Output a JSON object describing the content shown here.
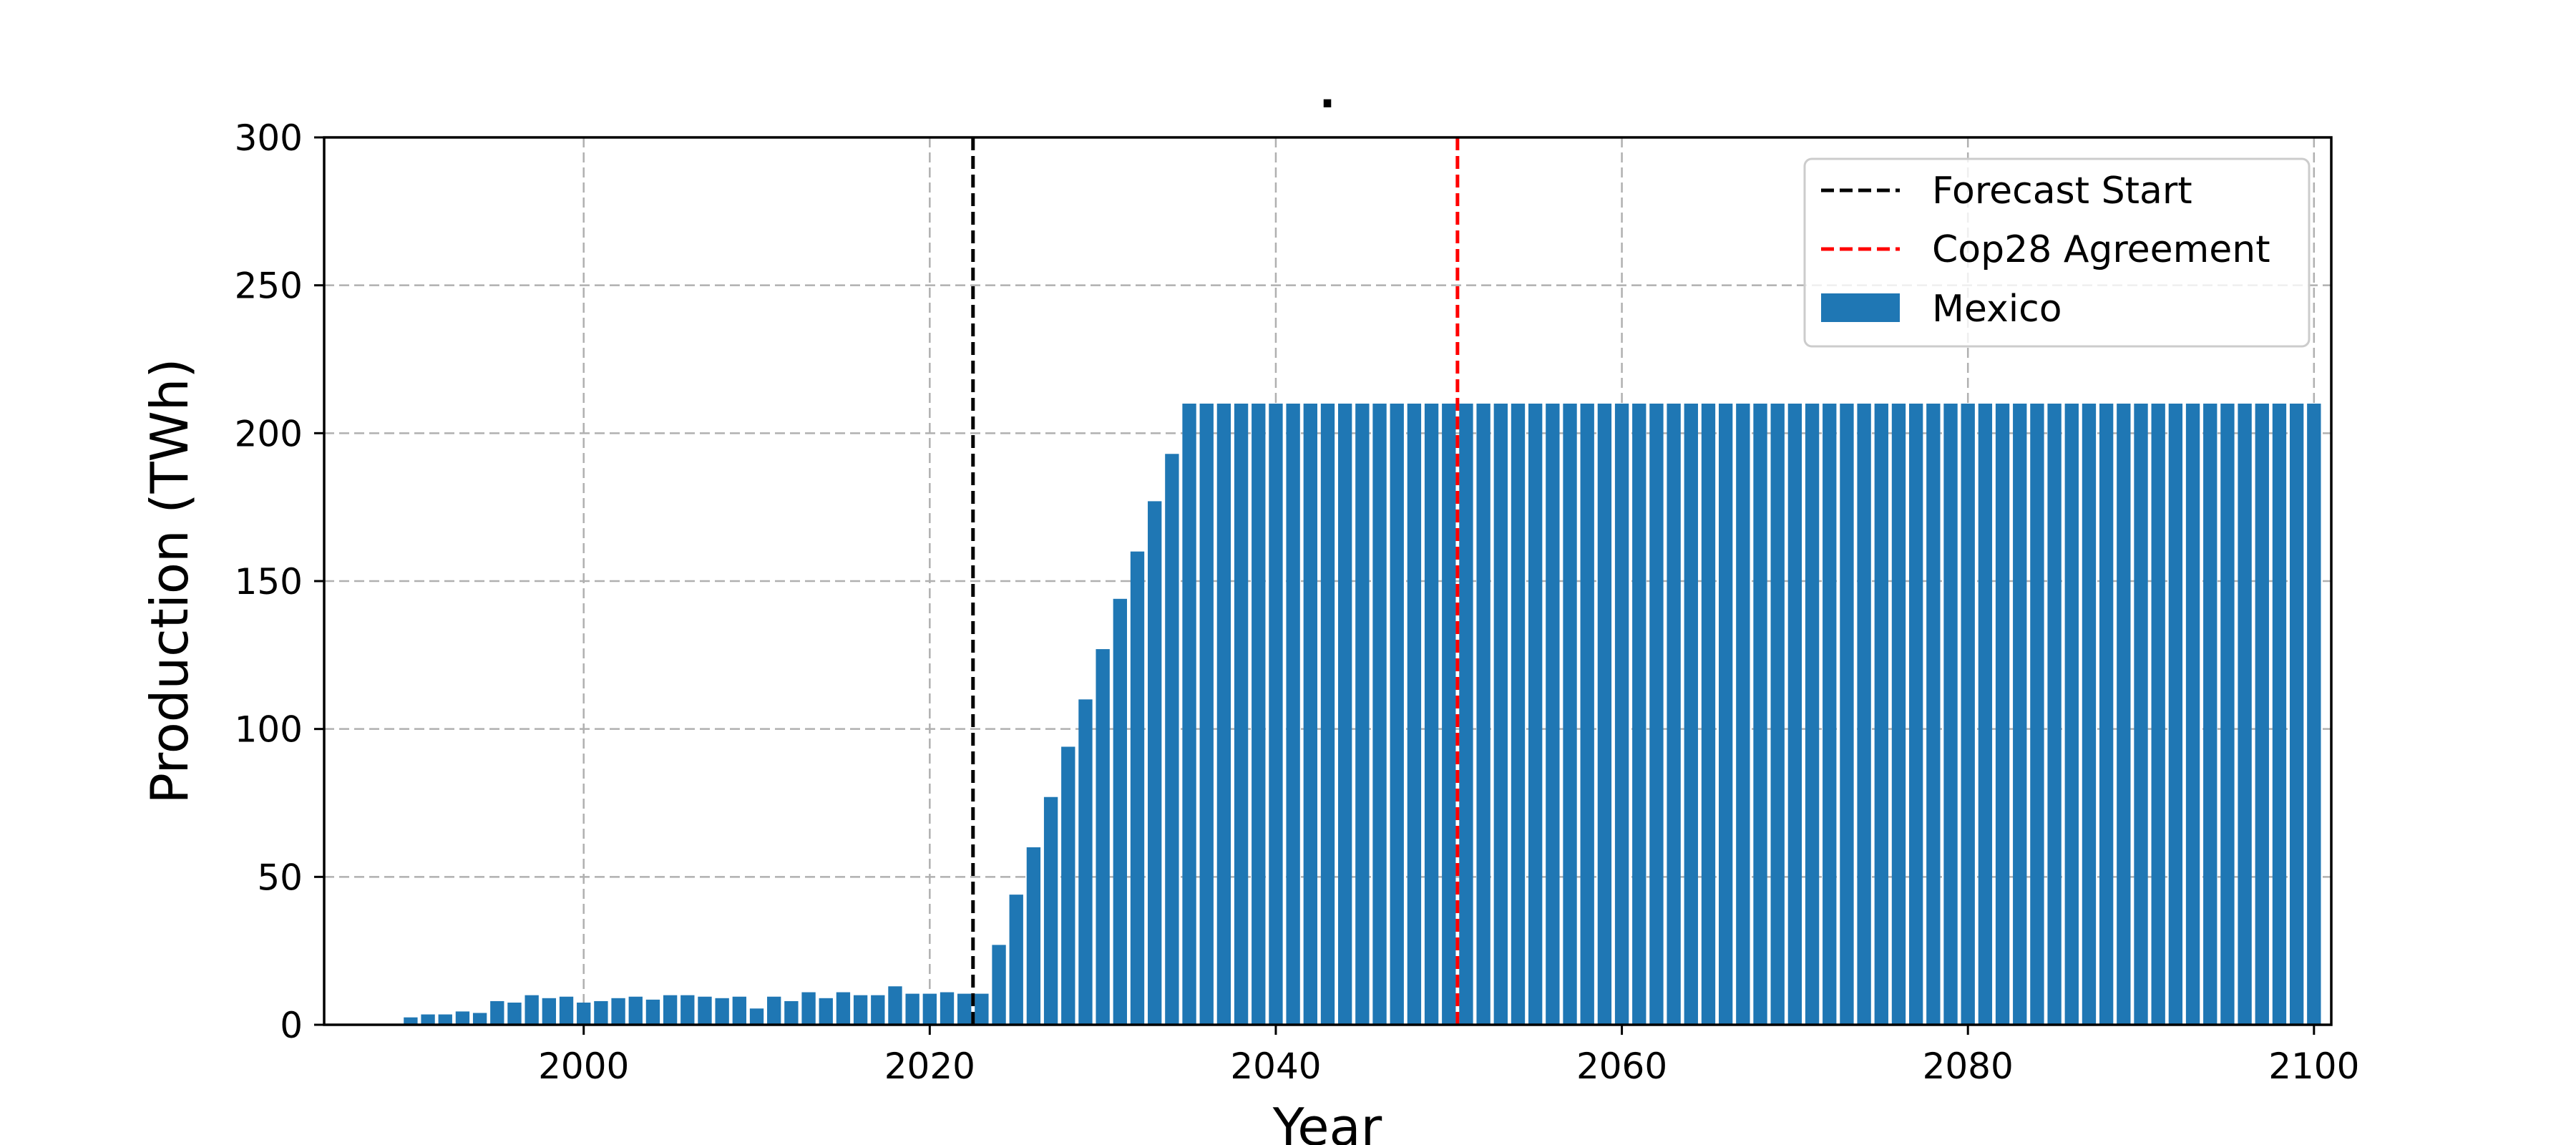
{
  "chart_data": {
    "type": "bar",
    "title": ".",
    "xlabel": "Year",
    "ylabel": "Production (TWh)",
    "xlim": [
      1985,
      2101
    ],
    "ylim": [
      0,
      300
    ],
    "xticks": [
      2000,
      2020,
      2040,
      2060,
      2080,
      2100
    ],
    "yticks": [
      0,
      50,
      100,
      150,
      200,
      250,
      300
    ],
    "grid": true,
    "legend_position": "top-right",
    "bar_color": "#1f77b4",
    "series": [
      {
        "name": "Mexico",
        "x": [
          1990,
          1991,
          1992,
          1993,
          1994,
          1995,
          1996,
          1997,
          1998,
          1999,
          2000,
          2001,
          2002,
          2003,
          2004,
          2005,
          2006,
          2007,
          2008,
          2009,
          2010,
          2011,
          2012,
          2013,
          2014,
          2015,
          2016,
          2017,
          2018,
          2019,
          2020,
          2021,
          2022,
          2023,
          2024,
          2025,
          2026,
          2027,
          2028,
          2029,
          2030,
          2031,
          2032,
          2033,
          2034,
          2035,
          2036,
          2037,
          2038,
          2039,
          2040,
          2041,
          2042,
          2043,
          2044,
          2045,
          2046,
          2047,
          2048,
          2049,
          2050,
          2051,
          2052,
          2053,
          2054,
          2055,
          2056,
          2057,
          2058,
          2059,
          2060,
          2061,
          2062,
          2063,
          2064,
          2065,
          2066,
          2067,
          2068,
          2069,
          2070,
          2071,
          2072,
          2073,
          2074,
          2075,
          2076,
          2077,
          2078,
          2079,
          2080,
          2081,
          2082,
          2083,
          2084,
          2085,
          2086,
          2087,
          2088,
          2089,
          2090,
          2091,
          2092,
          2093,
          2094,
          2095,
          2096,
          2097,
          2098,
          2099,
          2100
        ],
        "values": [
          2.5,
          3.5,
          3.5,
          4.5,
          4,
          8,
          7.5,
          10,
          9,
          9.5,
          7.5,
          8,
          9,
          9.5,
          8.5,
          10,
          10,
          9.5,
          9,
          9.5,
          5.5,
          9.5,
          8,
          11,
          9,
          11,
          10,
          10,
          13,
          10.5,
          10.5,
          11,
          10.5,
          10.5,
          27,
          44,
          60,
          77,
          94,
          110,
          127,
          144,
          160,
          177,
          193,
          210,
          210,
          210,
          210,
          210,
          210,
          210,
          210,
          210,
          210,
          210,
          210,
          210,
          210,
          210,
          210,
          210,
          210,
          210,
          210,
          210,
          210,
          210,
          210,
          210,
          210,
          210,
          210,
          210,
          210,
          210,
          210,
          210,
          210,
          210,
          210,
          210,
          210,
          210,
          210,
          210,
          210,
          210,
          210,
          210,
          210,
          210,
          210,
          210,
          210,
          210,
          210,
          210,
          210,
          210,
          210,
          210,
          210,
          210,
          210,
          210,
          210,
          210,
          210,
          210,
          210
        ]
      }
    ],
    "vlines": [
      {
        "name": "Forecast Start",
        "x": 2022.5,
        "color": "#000000"
      },
      {
        "name": "Cop28 Agreement",
        "x": 2050.5,
        "color": "#ff0000"
      }
    ]
  }
}
